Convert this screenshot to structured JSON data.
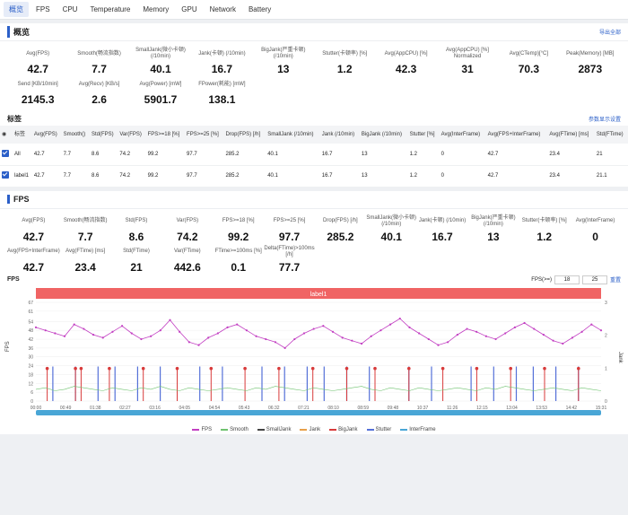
{
  "tabs": [
    "概览",
    "FPS",
    "CPU",
    "Temperature",
    "Memory",
    "GPU",
    "Network",
    "Battery"
  ],
  "overview": {
    "title": "概览",
    "export_label": "导出全部",
    "metrics": [
      {
        "label": "Avg(FPS)",
        "value": "42.7"
      },
      {
        "label": "Smooth(畅流指数)",
        "value": "7.7"
      },
      {
        "label": "SmallJank(微小卡顿) (/10min)",
        "value": "40.1"
      },
      {
        "label": "Jank(卡顿) (/10min)",
        "value": "16.7"
      },
      {
        "label": "BigJank(严重卡顿) (/10min)",
        "value": "13"
      },
      {
        "label": "Stutter(卡顿率) [%]",
        "value": "1.2"
      },
      {
        "label": "Avg(AppCPU) [%]",
        "value": "42.3"
      },
      {
        "label": "Avg(AppCPU) [%] Normalized",
        "value": "31"
      },
      {
        "label": "Avg(CTemp)[°C]",
        "value": "70.3"
      },
      {
        "label": "Peak(Memory) [MB]",
        "value": "2873"
      },
      {
        "label": "Send [KB/10min]",
        "value": "2145.3"
      },
      {
        "label": "Avg(Recv) [KB/s]",
        "value": "2.6"
      },
      {
        "label": "Avg(Power) [mW]",
        "value": "5901.7"
      },
      {
        "label": "FPower(耗能) [mW]",
        "value": "138.1"
      }
    ]
  },
  "labels_table": {
    "title": "标签",
    "settings_label": "参数显示设置",
    "columns": [
      "标签",
      "Avg(FPS)",
      "Smooth()",
      "Std(FPS)",
      "Var(FPS)",
      "FPS>=18 [%]",
      "FPS>=25 [%]",
      "Drop(FPS) [/h]",
      "SmallJank (/10min)",
      "Jank (/10min)",
      "BigJank (/10min)",
      "Stutter [%]",
      "Avg(InterFrame)",
      "Avg(FPS+InterFrame)",
      "Avg(FTime) [ms]",
      "Std(FTime)"
    ],
    "rows": [
      [
        "All",
        "42.7",
        "7.7",
        "8.6",
        "74.2",
        "99.2",
        "97.7",
        "285.2",
        "40.1",
        "16.7",
        "13",
        "1.2",
        "0",
        "42.7",
        "23.4",
        "21"
      ],
      [
        "label1",
        "42.7",
        "7.7",
        "8.6",
        "74.2",
        "99.2",
        "97.7",
        "285.2",
        "40.1",
        "16.7",
        "13",
        "1.2",
        "0",
        "42.7",
        "23.4",
        "21.1"
      ]
    ]
  },
  "fps_section": {
    "title": "FPS",
    "metrics": [
      {
        "label": "Avg(FPS)",
        "value": "42.7"
      },
      {
        "label": "Smooth(畅流指数)",
        "value": "7.7"
      },
      {
        "label": "Std(FPS)",
        "value": "8.6"
      },
      {
        "label": "Var(FPS)",
        "value": "74.2"
      },
      {
        "label": "FPS>=18 [%]",
        "value": "99.2"
      },
      {
        "label": "FPS>=25 [%]",
        "value": "97.7"
      },
      {
        "label": "Drop(FPS) [/h]",
        "value": "285.2"
      },
      {
        "label": "SmallJank(微小卡顿) (/10min)",
        "value": "40.1"
      },
      {
        "label": "Jank(卡顿) (/10min)",
        "value": "16.7"
      },
      {
        "label": "BigJank(严重卡顿) (/10min)",
        "value": "13"
      },
      {
        "label": "Stutter(卡顿率) [%]",
        "value": "1.2"
      },
      {
        "label": "Avg(InterFrame)",
        "value": "0"
      },
      {
        "label": "Avg(FPS+InterFrame)",
        "value": "42.7"
      },
      {
        "label": "Avg(FTime) [ms]",
        "value": "23.4"
      },
      {
        "label": "Std(FTime)",
        "value": "21"
      },
      {
        "label": "Var(FTime)",
        "value": "442.6"
      },
      {
        "label": "FTime>=100ms [%]",
        "value": "0.1"
      },
      {
        "label": "Delta(FTime)>100ms [/h]",
        "value": "77.7"
      }
    ]
  },
  "chart": {
    "title": "FPS",
    "fps_filter_label": "FPS(>=)",
    "fps_filter_values": [
      "18",
      "25"
    ],
    "reset_label": "重置",
    "label_bar": "label1",
    "ylabel_left": "FPS",
    "ylabel_right": "Jank",
    "colors": {
      "fps": "#c23fc2",
      "smooth": "#6fc26f",
      "smalljank": "#444444",
      "jank": "#e8a04a",
      "bigjank": "#d83a3a",
      "stutter": "#5470d8",
      "interframe": "#49a6d6",
      "labelbar": "#f06464"
    }
  },
  "chart_data": {
    "type": "line",
    "title": "FPS",
    "ylabel": "FPS",
    "y2label": "Jank",
    "ylim": [
      0,
      67
    ],
    "y2lim": [
      0,
      3
    ],
    "yticks": [
      0,
      6,
      12,
      18,
      24,
      30,
      36,
      42,
      48,
      54,
      61,
      67
    ],
    "y2ticks": [
      0,
      1,
      2,
      3
    ],
    "xticks": [
      "00:00",
      "00:49",
      "01:38",
      "02:27",
      "03:16",
      "04:05",
      "04:54",
      "05:43",
      "06:32",
      "07:21",
      "08:10",
      "08:59",
      "09:48",
      "10:37",
      "11:26",
      "12:15",
      "13:04",
      "13:53",
      "14:42",
      "15:31"
    ],
    "legend": [
      "FPS",
      "Smooth",
      "SmallJank",
      "Jank",
      "BigJank",
      "Stutter",
      "InterFrame"
    ],
    "series": [
      {
        "name": "FPS",
        "values": [
          50,
          48,
          46,
          44,
          52,
          49,
          45,
          43,
          47,
          51,
          46,
          42,
          44,
          48,
          55,
          47,
          40,
          38,
          43,
          46,
          50,
          52,
          48,
          44,
          42,
          40,
          36,
          42,
          46,
          49,
          51,
          47,
          43,
          41,
          39,
          44,
          48,
          52,
          56,
          50,
          46,
          42,
          38,
          40,
          45,
          49,
          47,
          44,
          42,
          46,
          50,
          53,
          49,
          45,
          41,
          39,
          43,
          47,
          52,
          48
        ]
      },
      {
        "name": "Smooth",
        "values": [
          8,
          9,
          7,
          8,
          10,
          9,
          8,
          7,
          9,
          8,
          7,
          9,
          8,
          10,
          8,
          7,
          9,
          8,
          7,
          8,
          9,
          8,
          7,
          9,
          8,
          10,
          9,
          8,
          7,
          9,
          8,
          7,
          8,
          9,
          10,
          8,
          7,
          9,
          8,
          7,
          9,
          8,
          7,
          8,
          9,
          8,
          7,
          9,
          8,
          10,
          9,
          8,
          7,
          8,
          9,
          8,
          7,
          9,
          8,
          7
        ]
      }
    ],
    "bigjank_markers": 18,
    "jank_markers": 22
  },
  "legend_colors": [
    "#c23fc2",
    "#6fc26f",
    "#444444",
    "#e8a04a",
    "#d83a3a",
    "#5470d8",
    "#49a6d6"
  ]
}
